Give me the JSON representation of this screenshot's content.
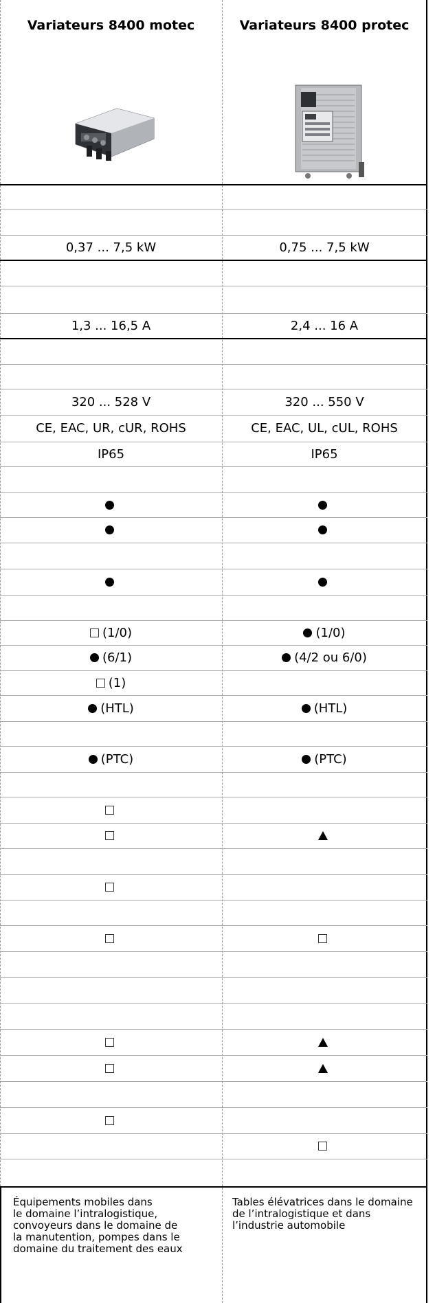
{
  "header": {
    "col1_title": "Variateurs 8400 motec",
    "col2_title": "Variateurs 8400 protec"
  },
  "images": {
    "col1": "variateur-8400-motec-photo",
    "col2": "variateur-8400-protec-photo"
  },
  "rows": [
    {
      "c1": "",
      "c2": ""
    },
    {
      "c1": "",
      "c2": ""
    },
    {
      "c1": "0,37 ... 7,5 kW",
      "c2": "0,75 ... 7,5 kW"
    },
    {
      "c1": "",
      "c2": ""
    },
    {
      "c1": "",
      "c2": ""
    },
    {
      "c1": "1,3 ... 16,5 A",
      "c2": "2,4 ... 16 A"
    },
    {
      "c1": "",
      "c2": ""
    },
    {
      "c1": "",
      "c2": ""
    },
    {
      "c1": "320 ... 528 V",
      "c2": "320 ... 550 V"
    },
    {
      "c1": "CE, EAC, UR, cUR, ROHS",
      "c2": "CE, EAC, UL, cUL, ROHS"
    },
    {
      "c1": "IP65",
      "c2": "IP65"
    },
    {
      "c1": "",
      "c2": ""
    },
    {
      "c1_sym": "dot",
      "c1": "",
      "c2_sym": "dot",
      "c2": ""
    },
    {
      "c1_sym": "dot",
      "c1": "",
      "c2_sym": "dot",
      "c2": ""
    },
    {
      "c1": "",
      "c2": ""
    },
    {
      "c1_sym": "dot",
      "c1": "",
      "c2_sym": "dot",
      "c2": ""
    },
    {
      "c1": "",
      "c2": ""
    },
    {
      "c1_sym": "square",
      "c1": "(1/0)",
      "c2_sym": "dot",
      "c2": "(1/0)"
    },
    {
      "c1_sym": "dot",
      "c1": "(6/1)",
      "c2_sym": "dot",
      "c2": "(4/2 ou 6/0)"
    },
    {
      "c1_sym": "square",
      "c1": "(1)",
      "c2": ""
    },
    {
      "c1_sym": "dot",
      "c1": "(HTL)",
      "c2_sym": "dot",
      "c2": "(HTL)"
    },
    {
      "c1": "",
      "c2": ""
    },
    {
      "c1_sym": "dot",
      "c1": "(PTC)",
      "c2_sym": "dot",
      "c2": "(PTC)"
    },
    {
      "c1": "",
      "c2": ""
    },
    {
      "c1_sym": "square",
      "c1": "",
      "c2": ""
    },
    {
      "c1_sym": "square",
      "c1": "",
      "c2_sym": "triangle",
      "c2": ""
    },
    {
      "c1": "",
      "c2": ""
    },
    {
      "c1_sym": "square",
      "c1": "",
      "c2": ""
    },
    {
      "c1": "",
      "c2": ""
    },
    {
      "c1_sym": "square",
      "c1": "",
      "c2_sym": "square",
      "c2": ""
    },
    {
      "c1": "",
      "c2": ""
    },
    {
      "c1": "",
      "c2": ""
    },
    {
      "c1": "",
      "c2": ""
    },
    {
      "c1_sym": "square",
      "c1": "",
      "c2_sym": "triangle",
      "c2": ""
    },
    {
      "c1_sym": "square",
      "c1": "",
      "c2_sym": "triangle",
      "c2": ""
    },
    {
      "c1": "",
      "c2": ""
    },
    {
      "c1_sym": "square",
      "c1": "",
      "c2": ""
    },
    {
      "c1": "",
      "c2_sym": "square",
      "c2": ""
    }
  ],
  "applications": {
    "col1": "Équipements mobiles dans\nle domaine l’intralogistique,\nconvoyeurs dans le domaine de\nla manutention, pompes dans le\ndomaine du traitement des eaux",
    "col2": "Tables élévatrices dans le domaine\nde l’intralogistique et dans\nl’industrie automobile"
  }
}
